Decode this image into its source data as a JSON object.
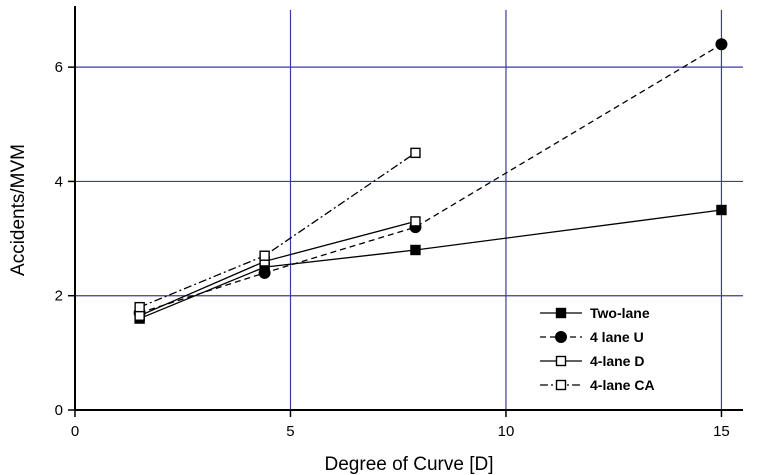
{
  "chart_data": {
    "type": "line",
    "xlabel": "Degree of Curve [D]",
    "ylabel": "Accidents/MVM",
    "xlim": [
      0,
      15.5
    ],
    "ylim": [
      0,
      7
    ],
    "xticks": [
      0,
      5,
      10,
      15
    ],
    "yticks": [
      0,
      2,
      4,
      6
    ],
    "grid": true,
    "grid_color": "#3a3aa8",
    "legend_position": "bottom-right",
    "series": [
      {
        "name": "Two-lane",
        "marker": "filled-square",
        "dash": "solid",
        "x": [
          1.5,
          4.4,
          7.9,
          15
        ],
        "y": [
          1.6,
          2.5,
          2.8,
          3.5
        ]
      },
      {
        "name": "4 lane U",
        "marker": "filled-circle",
        "dash": "dashed",
        "x": [
          1.5,
          4.4,
          7.9,
          15
        ],
        "y": [
          1.7,
          2.4,
          3.2,
          6.4
        ]
      },
      {
        "name": "4-lane D",
        "marker": "open-square",
        "dash": "solid",
        "x": [
          1.5,
          4.4,
          7.9
        ],
        "y": [
          1.65,
          2.6,
          3.3
        ]
      },
      {
        "name": "4-lane CA",
        "marker": "open-square",
        "dash": "dashdot",
        "x": [
          1.5,
          4.4,
          7.9
        ],
        "y": [
          1.8,
          2.7,
          4.5
        ]
      }
    ]
  }
}
